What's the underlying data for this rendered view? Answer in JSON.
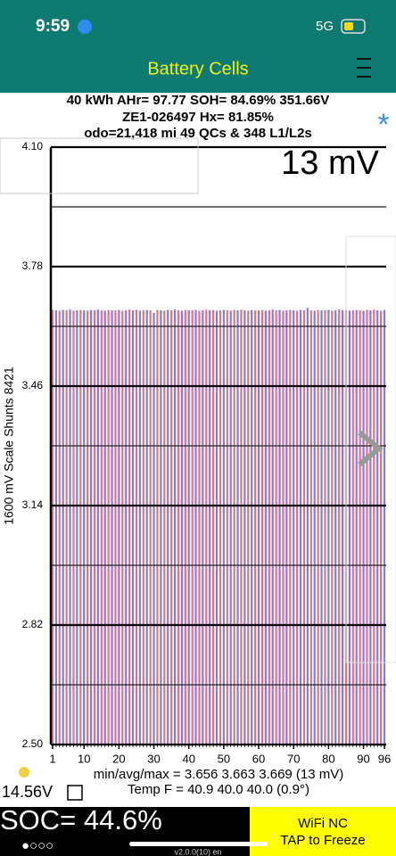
{
  "status_bar": {
    "time": "9:59",
    "network": "5G"
  },
  "header": {
    "title": "Battery Cells"
  },
  "info": {
    "line1": "40 kWh  AHr= 97.77  SOH= 84.69%   351.66V",
    "line2": "ZE1-026497   Hx= 81.85%",
    "line3": "odo=21,418 mi 49 QCs & 348 L1/L2s",
    "spread": "13 mV",
    "marker": "*"
  },
  "chart_data": {
    "type": "bar",
    "y_label": "1600 mV Scale   Shunts 8421",
    "x": [
      1,
      2,
      3,
      4,
      5,
      6,
      7,
      8,
      9,
      10,
      11,
      12,
      13,
      14,
      15,
      16,
      17,
      18,
      19,
      20,
      21,
      22,
      23,
      24,
      25,
      26,
      27,
      28,
      29,
      30,
      31,
      32,
      33,
      34,
      35,
      36,
      37,
      38,
      39,
      40,
      41,
      42,
      43,
      44,
      45,
      46,
      47,
      48,
      49,
      50,
      51,
      52,
      53,
      54,
      55,
      56,
      57,
      58,
      59,
      60,
      61,
      62,
      63,
      64,
      65,
      66,
      67,
      68,
      69,
      70,
      71,
      72,
      73,
      74,
      75,
      76,
      77,
      78,
      79,
      80,
      81,
      82,
      83,
      84,
      85,
      86,
      87,
      88,
      89,
      90,
      91,
      92,
      93,
      94,
      95,
      96
    ],
    "values": [
      3.664,
      3.663,
      3.662,
      3.664,
      3.663,
      3.665,
      3.662,
      3.663,
      3.664,
      3.663,
      3.662,
      3.664,
      3.663,
      3.665,
      3.663,
      3.662,
      3.664,
      3.663,
      3.663,
      3.664,
      3.662,
      3.663,
      3.665,
      3.663,
      3.664,
      3.662,
      3.663,
      3.664,
      3.663,
      3.656,
      3.664,
      3.663,
      3.662,
      3.664,
      3.663,
      3.665,
      3.663,
      3.662,
      3.664,
      3.663,
      3.663,
      3.664,
      3.662,
      3.663,
      3.665,
      3.663,
      3.664,
      3.662,
      3.663,
      3.664,
      3.663,
      3.662,
      3.664,
      3.663,
      3.665,
      3.663,
      3.662,
      3.664,
      3.663,
      3.663,
      3.664,
      3.662,
      3.663,
      3.665,
      3.663,
      3.664,
      3.662,
      3.663,
      3.664,
      3.663,
      3.662,
      3.664,
      3.663,
      3.669,
      3.663,
      3.662,
      3.664,
      3.663,
      3.663,
      3.664,
      3.662,
      3.663,
      3.665,
      3.663,
      3.664,
      3.662,
      3.663,
      3.664,
      3.663,
      3.662,
      3.664,
      3.663,
      3.665,
      3.663,
      3.662,
      3.664
    ],
    "colors": [
      "#e8707a",
      "#7d7de6"
    ],
    "xlim": [
      0.5,
      96.5
    ],
    "xticks": [
      1,
      10,
      20,
      30,
      40,
      50,
      60,
      70,
      80,
      90,
      96
    ],
    "ylim": [
      2.5,
      4.1
    ],
    "yticks": [
      {
        "value": 2.5,
        "label": "2.50"
      },
      2.82,
      3.14,
      3.46,
      3.78,
      {
        "value": 4.1,
        "label": "4.10"
      }
    ],
    "minor_grid": [
      2.66,
      2.98,
      3.3,
      3.62,
      3.94
    ],
    "grid": true
  },
  "footer": {
    "stats": "min/avg/max = 3.656 3.663 3.669  (13 mV)",
    "temp": "Temp F = 40.9  40.0  40.0  (0.9°)",
    "voltage": "14.56V",
    "soc": "SOC= 44.6%",
    "pages": "●○○○",
    "wifi": "WiFi NC",
    "freeze": "TAP to Freeze",
    "version": "v2.0.0(10) en"
  }
}
